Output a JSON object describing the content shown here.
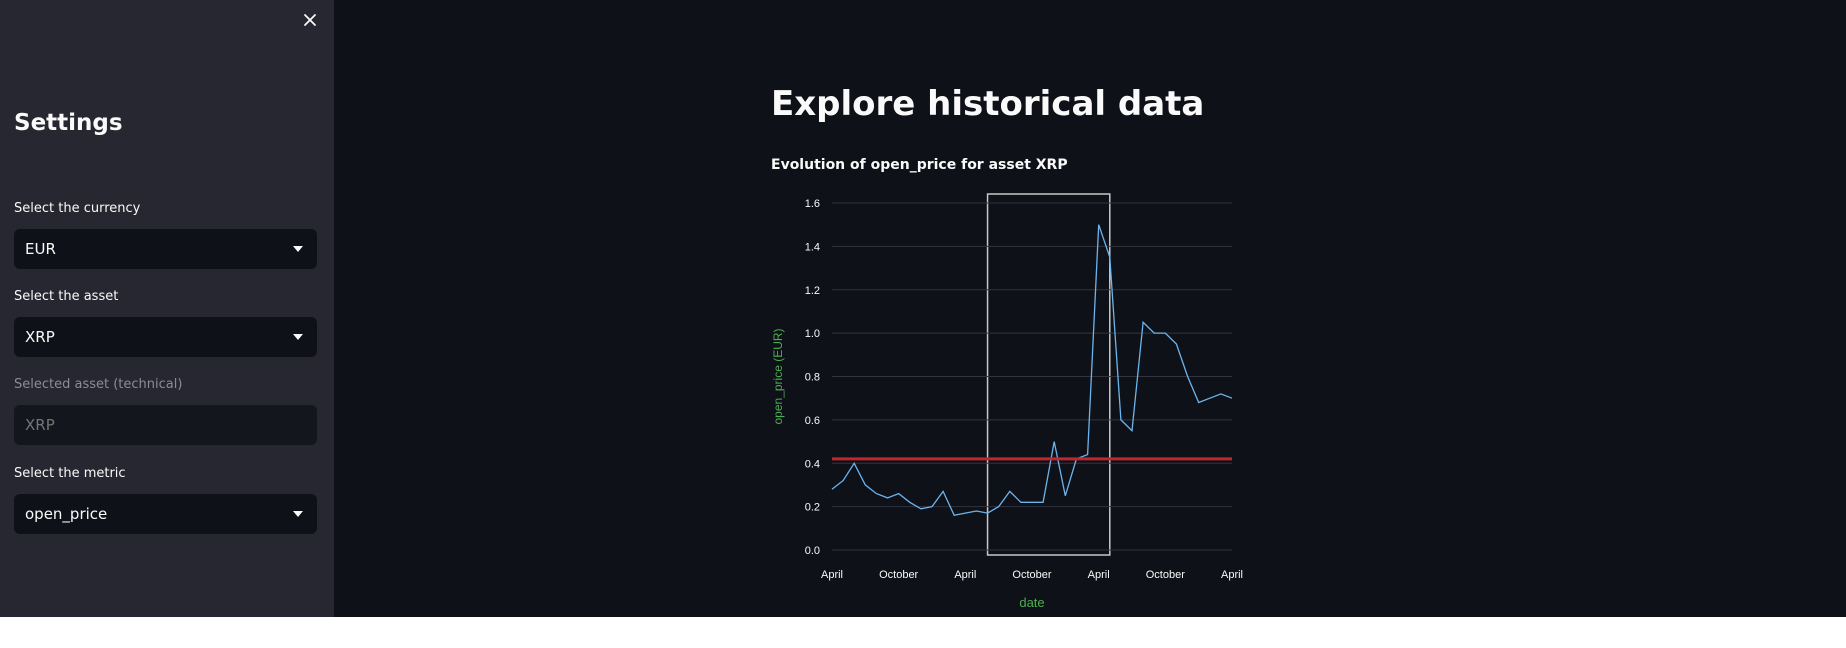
{
  "sidebar": {
    "title": "Settings",
    "close_icon": "close-icon",
    "currency": {
      "label": "Select the currency",
      "value": "EUR"
    },
    "asset": {
      "label": "Select the asset",
      "value": "XRP"
    },
    "technical": {
      "label": "Selected asset (technical)",
      "placeholder": "XRP"
    },
    "metric": {
      "label": "Select the metric",
      "value": "open_price"
    }
  },
  "main": {
    "title": "Explore historical data",
    "chart_title": "Evolution of open_price for asset XRP"
  },
  "colors": {
    "line": "#6cb4ee",
    "reference_line": "#c0262d",
    "axis_label": "#4caf50",
    "background": "#0e1117",
    "sidebar": "#262730"
  },
  "chart_data": {
    "type": "line",
    "xlabel": "date",
    "ylabel": "open_price (EUR)",
    "ylim": [
      0,
      1.6
    ],
    "y_ticks": [
      "0.0",
      "0.2",
      "0.4",
      "0.6",
      "0.8",
      "1.0",
      "1.2",
      "1.4",
      "1.6"
    ],
    "x_ticks": [
      "April",
      "October",
      "April",
      "October",
      "April",
      "October",
      "April"
    ],
    "xlim": [
      "2019-04",
      "2022-04"
    ],
    "reference_line_y": 0.42,
    "highlight_range": [
      "2020-06",
      "2021-05"
    ],
    "series": [
      {
        "x": [
          "2019-04",
          "2019-05",
          "2019-06",
          "2019-07",
          "2019-08",
          "2019-09",
          "2019-10",
          "2019-11",
          "2019-12",
          "2020-01",
          "2020-02",
          "2020-03",
          "2020-04",
          "2020-05",
          "2020-06",
          "2020-07",
          "2020-08",
          "2020-09",
          "2020-10",
          "2020-11",
          "2020-12",
          "2021-01",
          "2021-02",
          "2021-03",
          "2021-04",
          "2021-05",
          "2021-06",
          "2021-07",
          "2021-08",
          "2021-09",
          "2021-10",
          "2021-11",
          "2021-12",
          "2022-01",
          "2022-02",
          "2022-03",
          "2022-04"
        ],
        "values": [
          0.28,
          0.32,
          0.4,
          0.3,
          0.26,
          0.24,
          0.26,
          0.22,
          0.19,
          0.2,
          0.27,
          0.16,
          0.17,
          0.18,
          0.17,
          0.2,
          0.27,
          0.22,
          0.22,
          0.22,
          0.5,
          0.25,
          0.42,
          0.44,
          1.5,
          1.35,
          0.6,
          0.55,
          1.05,
          1.0,
          1.0,
          0.95,
          0.8,
          0.68,
          0.7,
          0.72,
          0.7
        ]
      }
    ]
  }
}
